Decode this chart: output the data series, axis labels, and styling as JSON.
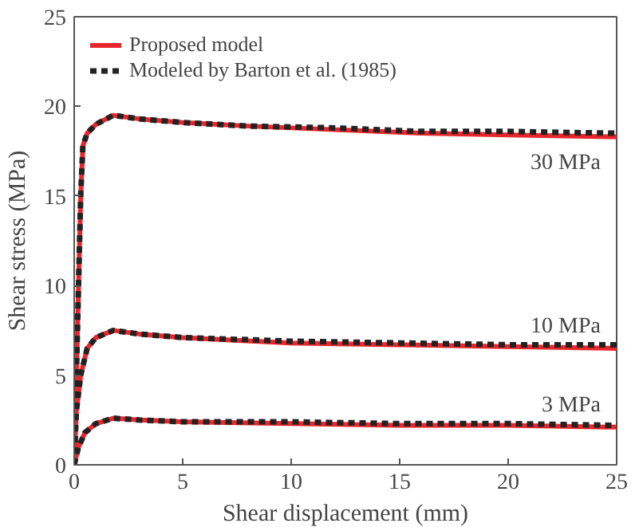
{
  "chart_data": {
    "type": "line",
    "xlabel": "Shear displacement (mm)",
    "ylabel": "Shear stress (MPa)",
    "xlim": [
      0,
      25
    ],
    "ylim": [
      0,
      25
    ],
    "xticks": [
      0,
      5,
      10,
      15,
      20,
      25
    ],
    "yticks": [
      0,
      5,
      10,
      15,
      20,
      25
    ],
    "grid": false,
    "legend": "top left",
    "series": [
      {
        "name": "Proposed model",
        "color": "#e8262b",
        "line_style": "solid",
        "x": [
          0,
          0.2,
          0.3,
          0.4,
          0.6,
          1,
          1.8,
          3,
          5,
          8,
          12,
          16,
          20,
          25
        ],
        "values": [
          0,
          10,
          15,
          17.8,
          18.5,
          19,
          19.5,
          19.3,
          19.1,
          18.9,
          18.7,
          18.5,
          18.4,
          18.3
        ]
      },
      {
        "color": "#e8262b",
        "line_style": "solid",
        "x": [
          0,
          0.1,
          0.3,
          0.6,
          1,
          1.8,
          3,
          5,
          10,
          15,
          20,
          25
        ],
        "values": [
          0,
          3,
          5,
          6.5,
          7.1,
          7.5,
          7.3,
          7.1,
          6.8,
          6.7,
          6.6,
          6.5
        ]
      },
      {
        "color": "#e8262b",
        "line_style": "solid",
        "x": [
          0,
          0.2,
          0.5,
          1,
          1.8,
          3,
          5,
          10,
          15,
          20,
          25
        ],
        "values": [
          0,
          1,
          1.8,
          2.3,
          2.6,
          2.5,
          2.4,
          2.3,
          2.2,
          2.2,
          2.1
        ]
      },
      {
        "name": "Modeled by Barton et al. (1985)",
        "color": "#222222",
        "line_style": "dashed",
        "x": [
          0,
          0.2,
          0.3,
          0.4,
          0.6,
          1,
          1.8,
          3,
          5,
          8,
          12,
          16,
          20,
          25
        ],
        "values": [
          0,
          10,
          15,
          17.8,
          18.5,
          19,
          19.5,
          19.3,
          19.1,
          18.9,
          18.8,
          18.6,
          18.6,
          18.5
        ]
      },
      {
        "color": "#222222",
        "line_style": "dashed",
        "x": [
          0,
          0.1,
          0.3,
          0.6,
          1,
          1.8,
          3,
          5,
          10,
          15,
          20,
          25
        ],
        "values": [
          0,
          3,
          5,
          6.5,
          7.1,
          7.5,
          7.3,
          7.1,
          6.9,
          6.8,
          6.7,
          6.7
        ]
      },
      {
        "color": "#222222",
        "line_style": "dashed",
        "x": [
          0,
          0.2,
          0.5,
          1,
          1.8,
          3,
          5,
          10,
          15,
          20,
          25
        ],
        "values": [
          0,
          1,
          1.8,
          2.3,
          2.6,
          2.5,
          2.4,
          2.4,
          2.3,
          2.3,
          2.2
        ]
      }
    ],
    "annotations": [
      "30 MPa",
      "10 MPa",
      "3 MPa"
    ]
  }
}
